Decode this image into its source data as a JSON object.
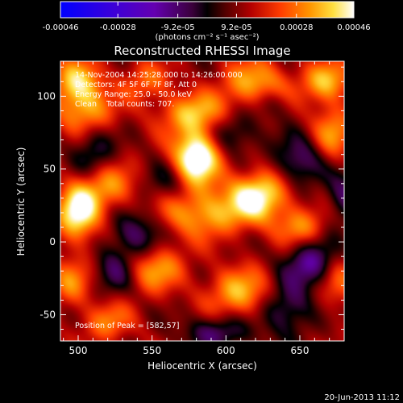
{
  "chart_data": {
    "type": "heatmap",
    "title": "Reconstructed RHESSI Image",
    "xlabel": "Heliocentric X (arcsec)",
    "ylabel": "Heliocentric Y (arcsec)",
    "xlim": [
      488,
      680
    ],
    "ylim": [
      -68,
      124
    ],
    "x_ticks": [
      500,
      550,
      600,
      650
    ],
    "y_ticks": [
      -50,
      0,
      50,
      100
    ],
    "x_tick_labels": [
      "500",
      "550",
      "600",
      "650"
    ],
    "y_tick_labels": [
      "-50",
      "0",
      "50",
      "100"
    ],
    "colorbar": {
      "min": -0.00046,
      "max": 0.00046,
      "ticks": [
        -0.00046,
        -0.00028,
        -9.2e-05,
        9.2e-05,
        0.00028,
        0.00046
      ],
      "tick_labels": [
        "-0.00046",
        "-0.00028",
        "-9.2e-05",
        "9.2e-05",
        "0.00028",
        "0.00046"
      ],
      "unit_label": "(photons cm⁻² s⁻¹ asec⁻²)"
    },
    "annotations": [
      "14-Nov-2004 14:25:28.000 to 14:26:00.000",
      "Detectors: 4F 5F 6F 7F 8F, Att 0",
      "Energy Range: 25.0 - 50.0 keV",
      "Clean    Total counts: 707."
    ],
    "peak_label": "Position of Peak = [582,57]",
    "peak": {
      "x": 582,
      "y": 57
    },
    "blobs": [
      {
        "x": 580,
        "y": 58,
        "v": 1.0,
        "sx": 11,
        "sy": 13
      },
      {
        "x": 578,
        "y": 88,
        "v": 0.55,
        "sx": 16,
        "sy": 10
      },
      {
        "x": 500,
        "y": 108,
        "v": 0.65,
        "sx": 12,
        "sy": 12
      },
      {
        "x": 505,
        "y": 88,
        "v": 0.4,
        "sx": 14,
        "sy": 10
      },
      {
        "x": 620,
        "y": 108,
        "v": 0.55,
        "sx": 16,
        "sy": 12
      },
      {
        "x": 668,
        "y": 110,
        "v": 0.55,
        "sx": 12,
        "sy": 10
      },
      {
        "x": 672,
        "y": 75,
        "v": 0.45,
        "sx": 10,
        "sy": 14
      },
      {
        "x": 500,
        "y": 20,
        "v": 0.8,
        "sx": 10,
        "sy": 14
      },
      {
        "x": 520,
        "y": 38,
        "v": 0.45,
        "sx": 14,
        "sy": 12
      },
      {
        "x": 585,
        "y": 20,
        "v": 0.55,
        "sx": 22,
        "sy": 12
      },
      {
        "x": 622,
        "y": 32,
        "v": 0.75,
        "sx": 14,
        "sy": 12
      },
      {
        "x": 650,
        "y": 10,
        "v": 0.45,
        "sx": 12,
        "sy": 10
      },
      {
        "x": 552,
        "y": -18,
        "v": 0.5,
        "sx": 14,
        "sy": 12
      },
      {
        "x": 610,
        "y": -35,
        "v": 0.55,
        "sx": 16,
        "sy": 12
      },
      {
        "x": 495,
        "y": -28,
        "v": 0.4,
        "sx": 10,
        "sy": 12
      },
      {
        "x": 675,
        "y": -25,
        "v": 0.45,
        "sx": 10,
        "sy": 14
      },
      {
        "x": 520,
        "y": -55,
        "v": 0.4,
        "sx": 12,
        "sy": 10
      },
      {
        "x": 545,
        "y": 110,
        "v": 0.35,
        "sx": 12,
        "sy": 10
      },
      {
        "x": 510,
        "y": 60,
        "v": -0.35,
        "sx": 10,
        "sy": 12
      },
      {
        "x": 560,
        "y": 40,
        "v": -0.25,
        "sx": 12,
        "sy": 10
      },
      {
        "x": 540,
        "y": 5,
        "v": -0.45,
        "sx": 12,
        "sy": 12
      },
      {
        "x": 605,
        "y": 75,
        "v": -0.35,
        "sx": 12,
        "sy": 10
      },
      {
        "x": 650,
        "y": 55,
        "v": -0.45,
        "sx": 12,
        "sy": 12
      },
      {
        "x": 660,
        "y": -15,
        "v": -0.6,
        "sx": 14,
        "sy": 12
      },
      {
        "x": 595,
        "y": -62,
        "v": -0.4,
        "sx": 16,
        "sy": 8
      },
      {
        "x": 640,
        "y": -45,
        "v": -0.45,
        "sx": 12,
        "sy": 12
      },
      {
        "x": 525,
        "y": -20,
        "v": -0.35,
        "sx": 10,
        "sy": 12
      },
      {
        "x": 630,
        "y": 95,
        "v": -0.25,
        "sx": 10,
        "sy": 8
      },
      {
        "x": 680,
        "y": 30,
        "v": -0.4,
        "sx": 8,
        "sy": 12
      }
    ],
    "grid": false,
    "legend": "colorbar-top"
  },
  "footer": {
    "timestamp": "20-Jun-2013 11:12"
  },
  "colors": {
    "background": "#000000",
    "text": "#ffffff"
  }
}
